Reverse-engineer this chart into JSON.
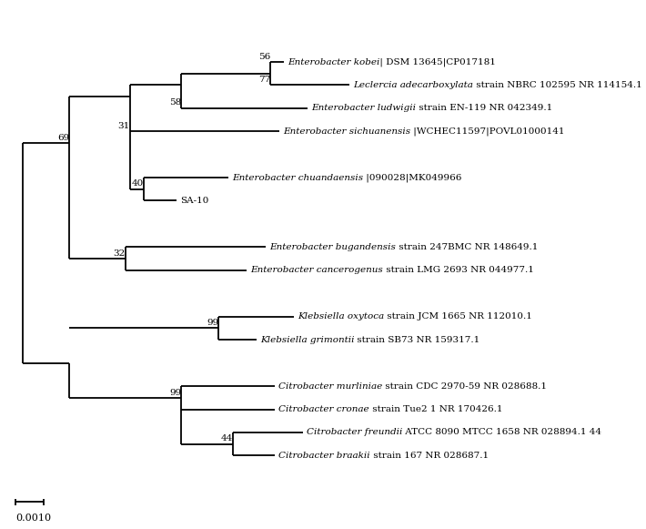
{
  "scale_bar_label": "0.0010",
  "lw": 1.3,
  "bg_color": "#ffffff",
  "line_color": "#000000",
  "text_color": "#000000",
  "taxa_labels": [
    {
      "italic": "Enterobacter kobei|",
      "normal": " DSM 13645|CP017181",
      "y": 14
    },
    {
      "italic": "Leclercia adecarboxylata",
      "normal": " strain NBRC 102595 NR 114154.1",
      "y": 13
    },
    {
      "italic": "Enterobacter ludwigii",
      "normal": " strain EN-119 NR 042349.1",
      "y": 12
    },
    {
      "italic": "Enterobacter sichuanensis",
      "normal": " |WCHEC11597|POVL01000141",
      "y": 11
    },
    {
      "italic": "Enterobacter chuandaensis",
      "normal": " |090028|MK049966",
      "y": 9
    },
    {
      "italic": "",
      "normal": "SA-10",
      "y": 8
    },
    {
      "italic": "Enterobacter bugandensis",
      "normal": " strain 247BMC NR 148649.1",
      "y": 6
    },
    {
      "italic": "Enterobacter cancerogenus",
      "normal": " strain LMG 2693 NR 044977.1",
      "y": 5
    },
    {
      "italic": "Klebsiella oxytoca",
      "normal": " strain JCM 1665 NR 112010.1",
      "y": 3
    },
    {
      "italic": "Klebsiella grimontii",
      "normal": " strain SB73 NR 159317.1",
      "y": 2
    },
    {
      "italic": "Citrobacter murliniae",
      "normal": " strain CDC 2970-59 NR 028688.1",
      "y": 0
    },
    {
      "italic": "Citrobacter cronae",
      "normal": " strain Tue2 1 NR 170426.1",
      "y": -1
    },
    {
      "italic": "Citrobacter freundii",
      "normal": " ATCC 8090 MTCC 1658 NR 028894.1 44",
      "y": -2
    },
    {
      "italic": "Citrobacter braakii",
      "normal": " strain 167 NR 028687.1",
      "y": -3
    }
  ]
}
